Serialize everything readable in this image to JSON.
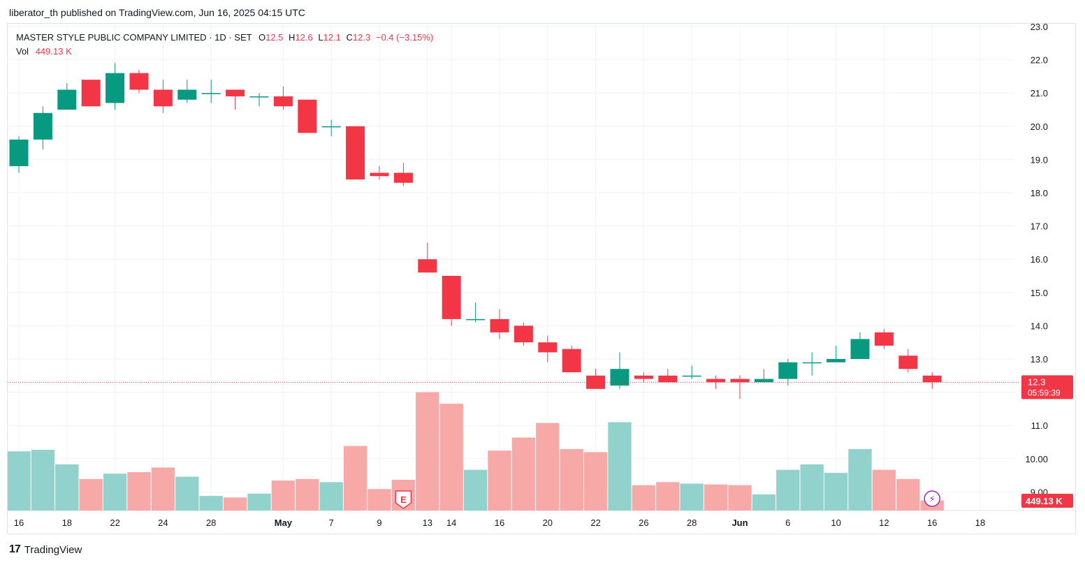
{
  "header": {
    "published": "liberator_th published on TradingView.com, Jun 16, 2025 04:15 UTC"
  },
  "legend": {
    "symbol": "MASTER STYLE PUBLIC COMPANY LIMITED · 1D · SET",
    "o_label": "O",
    "o": "12.5",
    "h_label": "H",
    "h": "12.6",
    "l_label": "L",
    "l": "12.1",
    "c_label": "C",
    "c": "12.3",
    "change": "−0.4 (−3.15%)",
    "vol_label": "Vol",
    "vol": "449.13 K"
  },
  "footer": {
    "brand": "TradingView",
    "logo": "17"
  },
  "colors": {
    "up": "#089981",
    "down": "#f23645",
    "vol_up": "#92d2cc",
    "vol_down": "#f7a9a7",
    "grid": "#f0f3fa",
    "axis_text": "#131722"
  },
  "chart_data": {
    "type": "candlestick",
    "symbol": "MASTER STYLE PUBLIC COMPANY LIMITED",
    "interval": "1D",
    "exchange": "SET",
    "ylim": [
      8.6,
      23.0
    ],
    "y_ticks": [
      "9.00",
      "10.00",
      "11.0",
      "12.0",
      "13.0",
      "14.0",
      "15.0",
      "16.0",
      "17.0",
      "18.0",
      "19.0",
      "20.0",
      "21.0",
      "22.0",
      "23.0"
    ],
    "x_ticks": [
      "16",
      "18",
      "22",
      "24",
      "28",
      "May",
      "7",
      "9",
      "13",
      "14",
      "16",
      "20",
      "22",
      "26",
      "28",
      "Jun",
      "6",
      "10",
      "12",
      "16",
      "18"
    ],
    "last_price": "12.3",
    "countdown": "05:59:39",
    "volume_label": "449.13 K",
    "earnings_marker": "E",
    "dividend_marker": "⚡",
    "candles": [
      {
        "o": 18.8,
        "h": 19.7,
        "l": 18.6,
        "c": 19.6,
        "v": 0.385
      },
      {
        "o": 19.6,
        "h": 20.6,
        "l": 19.3,
        "c": 20.4,
        "v": 0.395
      },
      {
        "o": 20.5,
        "h": 21.3,
        "l": 20.5,
        "c": 21.1,
        "v": 0.3
      },
      {
        "o": 21.4,
        "h": 21.4,
        "l": 20.6,
        "c": 20.6,
        "v": 0.205
      },
      {
        "o": 20.7,
        "h": 21.9,
        "l": 20.5,
        "c": 21.6,
        "v": 0.24
      },
      {
        "o": 21.6,
        "h": 21.7,
        "l": 21.0,
        "c": 21.1,
        "v": 0.25
      },
      {
        "o": 21.1,
        "h": 21.4,
        "l": 20.4,
        "c": 20.6,
        "v": 0.28
      },
      {
        "o": 20.8,
        "h": 21.4,
        "l": 20.7,
        "c": 21.1,
        "v": 0.22
      },
      {
        "o": 21.0,
        "h": 21.4,
        "l": 20.7,
        "c": 21.0,
        "v": 0.095
      },
      {
        "o": 21.1,
        "h": 21.1,
        "l": 20.5,
        "c": 20.9,
        "v": 0.085
      },
      {
        "o": 20.9,
        "h": 21.0,
        "l": 20.6,
        "c": 20.9,
        "v": 0.11
      },
      {
        "o": 20.9,
        "h": 21.2,
        "l": 20.5,
        "c": 20.6,
        "v": 0.195
      },
      {
        "o": 20.8,
        "h": 20.8,
        "l": 19.8,
        "c": 19.8,
        "v": 0.205
      },
      {
        "o": 20.0,
        "h": 20.2,
        "l": 19.7,
        "c": 20.0,
        "v": 0.185
      },
      {
        "o": 20.0,
        "h": 20.0,
        "l": 18.4,
        "c": 18.4,
        "v": 0.42
      },
      {
        "o": 18.6,
        "h": 18.8,
        "l": 18.4,
        "c": 18.5,
        "v": 0.14
      },
      {
        "o": 18.6,
        "h": 18.9,
        "l": 18.2,
        "c": 18.3,
        "v": 0.2
      },
      {
        "o": 16.0,
        "h": 16.5,
        "l": 15.6,
        "c": 15.6,
        "v": 0.77
      },
      {
        "o": 15.5,
        "h": 15.5,
        "l": 14.0,
        "c": 14.2,
        "v": 0.695
      },
      {
        "o": 14.2,
        "h": 14.7,
        "l": 14.1,
        "c": 14.2,
        "v": 0.265
      },
      {
        "o": 14.2,
        "h": 14.5,
        "l": 13.6,
        "c": 13.8,
        "v": 0.39
      },
      {
        "o": 14.0,
        "h": 14.1,
        "l": 13.4,
        "c": 13.5,
        "v": 0.475
      },
      {
        "o": 13.5,
        "h": 13.7,
        "l": 12.9,
        "c": 13.2,
        "v": 0.57
      },
      {
        "o": 13.3,
        "h": 13.4,
        "l": 12.6,
        "c": 12.6,
        "v": 0.4
      },
      {
        "o": 12.5,
        "h": 12.7,
        "l": 12.1,
        "c": 12.1,
        "v": 0.38
      },
      {
        "o": 12.2,
        "h": 13.2,
        "l": 12.1,
        "c": 12.7,
        "v": 0.575
      },
      {
        "o": 12.5,
        "h": 12.6,
        "l": 12.3,
        "c": 12.4,
        "v": 0.165
      },
      {
        "o": 12.5,
        "h": 12.7,
        "l": 12.3,
        "c": 12.3,
        "v": 0.185
      },
      {
        "o": 12.5,
        "h": 12.8,
        "l": 12.4,
        "c": 12.5,
        "v": 0.175
      },
      {
        "o": 12.4,
        "h": 12.5,
        "l": 12.1,
        "c": 12.3,
        "v": 0.17
      },
      {
        "o": 12.4,
        "h": 12.5,
        "l": 11.8,
        "c": 12.3,
        "v": 0.165
      },
      {
        "o": 12.3,
        "h": 12.7,
        "l": 12.3,
        "c": 12.4,
        "v": 0.105
      },
      {
        "o": 12.4,
        "h": 13.0,
        "l": 12.2,
        "c": 12.9,
        "v": 0.265
      },
      {
        "o": 12.9,
        "h": 13.2,
        "l": 12.5,
        "c": 12.9,
        "v": 0.3
      },
      {
        "o": 12.9,
        "h": 13.4,
        "l": 12.9,
        "c": 13.0,
        "v": 0.245
      },
      {
        "o": 13.0,
        "h": 13.8,
        "l": 13.0,
        "c": 13.6,
        "v": 0.4
      },
      {
        "o": 13.8,
        "h": 13.9,
        "l": 13.3,
        "c": 13.4,
        "v": 0.265
      },
      {
        "o": 13.1,
        "h": 13.3,
        "l": 12.6,
        "c": 12.7,
        "v": 0.205
      },
      {
        "o": 12.5,
        "h": 12.6,
        "l": 12.1,
        "c": 12.3,
        "v": 0.065
      }
    ]
  }
}
